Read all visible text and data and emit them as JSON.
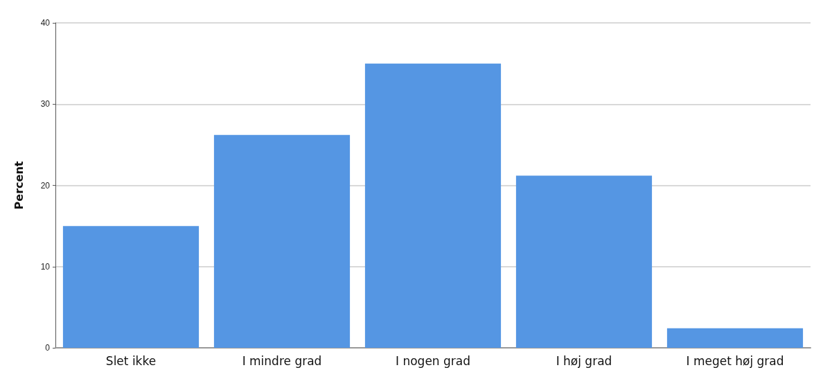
{
  "chart_data": {
    "type": "bar",
    "ylabel": "Percent",
    "categories": [
      "Slet ikke",
      "I mindre grad",
      "I nogen grad",
      "I høj grad",
      "I meget høj grad"
    ],
    "values": [
      15,
      26.2,
      35,
      21.2,
      2.4
    ],
    "color": "#5596e3",
    "ylim": [
      0,
      40
    ],
    "yticks": [
      0,
      10,
      20,
      30,
      40
    ],
    "grid": "y"
  }
}
